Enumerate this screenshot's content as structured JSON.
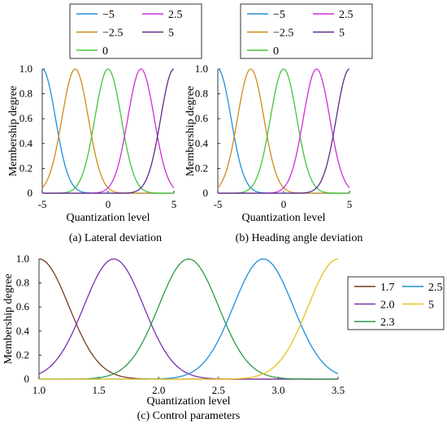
{
  "chart_data": [
    {
      "id": "a",
      "type": "line",
      "title": "(a) Lateral deviation",
      "xlabel": "Quantization level",
      "ylabel": "Membership degree",
      "xlim": [
        -5,
        5
      ],
      "ylim": [
        0,
        1
      ],
      "xticks": [
        "-5",
        "0",
        "5"
      ],
      "xtick_values": [
        -5,
        0,
        5
      ],
      "yticks": [
        "0",
        "0.2",
        "0.4",
        "0.6",
        "0.8",
        "1.0"
      ],
      "ytick_values": [
        0,
        0.2,
        0.4,
        0.6,
        0.8,
        1.0
      ],
      "legend": {
        "placement": "top",
        "columns": 2
      },
      "series": [
        {
          "name": "−5",
          "center": -5,
          "sigma": 1.0,
          "color": "#1f8fd6"
        },
        {
          "name": "−2.5",
          "center": -2.5,
          "sigma": 1.0,
          "color": "#d08a1a"
        },
        {
          "name": "0",
          "center": 0,
          "sigma": 1.0,
          "color": "#44c43a"
        },
        {
          "name": "2.5",
          "center": 2.5,
          "sigma": 1.0,
          "color": "#cc2fd6"
        },
        {
          "name": "5",
          "center": 5,
          "sigma": 1.0,
          "color": "#5e2a8c"
        }
      ]
    },
    {
      "id": "b",
      "type": "line",
      "title": "(b) Heading angle deviation",
      "xlabel": "Quantization level",
      "ylabel": "Membership degree",
      "xlim": [
        -5,
        5
      ],
      "ylim": [
        0,
        1
      ],
      "xticks": [
        "-5",
        "0",
        "5"
      ],
      "xtick_values": [
        -5,
        0,
        5
      ],
      "yticks": [
        "0",
        "0.2",
        "0.4",
        "0.6",
        "0.8",
        "1.0"
      ],
      "ytick_values": [
        0,
        0.2,
        0.4,
        0.6,
        0.8,
        1.0
      ],
      "legend": {
        "placement": "top",
        "columns": 2
      },
      "series": [
        {
          "name": "−5",
          "center": -5,
          "sigma": 1.0,
          "color": "#1f8fd6"
        },
        {
          "name": "−2.5",
          "center": -2.5,
          "sigma": 1.0,
          "color": "#d08a1a"
        },
        {
          "name": "0",
          "center": 0,
          "sigma": 1.0,
          "color": "#44c43a"
        },
        {
          "name": "2.5",
          "center": 2.5,
          "sigma": 1.0,
          "color": "#cc2fd6"
        },
        {
          "name": "5",
          "center": 5,
          "sigma": 1.0,
          "color": "#5e2a8c"
        }
      ]
    },
    {
      "id": "c",
      "type": "line",
      "title": "(c) Control parameters",
      "xlabel": "Quantization level",
      "ylabel": "Membership degree",
      "xlim": [
        1.0,
        3.5
      ],
      "ylim": [
        0,
        1
      ],
      "xticks": [
        "1.0",
        "1.5",
        "2.0",
        "2.5",
        "3.0",
        "3.5"
      ],
      "xtick_values": [
        1.0,
        1.5,
        2.0,
        2.5,
        3.0,
        3.5
      ],
      "yticks": [
        "0",
        "0.2",
        "0.4",
        "0.6",
        "0.8",
        "1.0"
      ],
      "ytick_values": [
        0,
        0.2,
        0.4,
        0.6,
        0.8,
        1.0
      ],
      "legend": {
        "placement": "right",
        "columns": 2
      },
      "series": [
        {
          "name": "1.7",
          "center": 1.0,
          "sigma": 0.25,
          "color": "#7a3b1e"
        },
        {
          "name": "2.0",
          "center": 1.625,
          "sigma": 0.25,
          "color": "#7a2fae"
        },
        {
          "name": "2.3",
          "center": 2.25,
          "sigma": 0.25,
          "color": "#2c9a46"
        },
        {
          "name": "2.5",
          "center": 2.875,
          "sigma": 0.25,
          "color": "#1f8fd6"
        },
        {
          "name": "5",
          "center": 3.5,
          "sigma": 0.25,
          "color": "#e8c21a"
        }
      ]
    }
  ]
}
